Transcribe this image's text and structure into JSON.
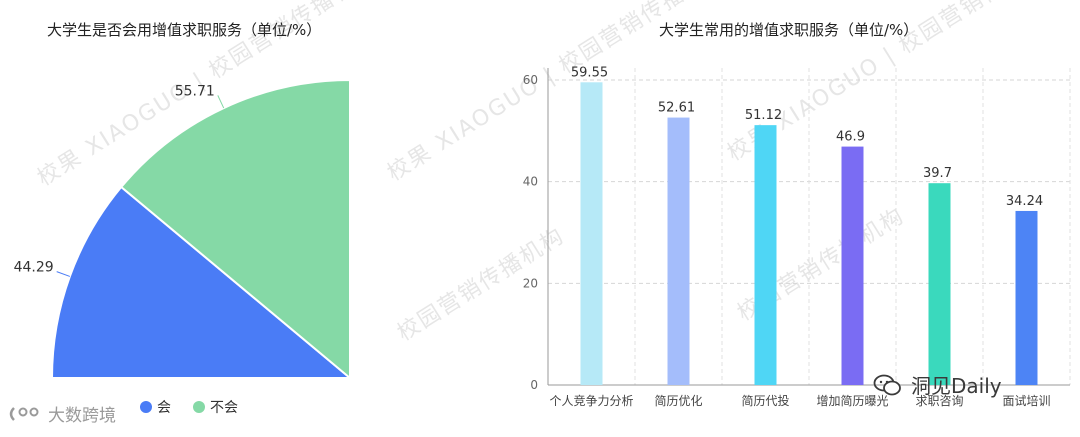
{
  "chart_data": [
    {
      "type": "pie",
      "title": "大学生是否会用增值求职服务（单位/%）",
      "slices": [
        {
          "label": "会",
          "value": 44.29,
          "color": "#4a7cf6"
        },
        {
          "label": "不会",
          "value": 55.71,
          "color": "#85d9a6"
        }
      ],
      "legend_position": "bottom"
    },
    {
      "type": "bar",
      "title": "大学生常用的增值求职服务（单位/%）",
      "categories": [
        "个人竞争力分析",
        "简历优化",
        "简历代投",
        "增加简历曝光",
        "求职咨询",
        "面试培训"
      ],
      "values": [
        59.55,
        52.61,
        51.12,
        46.9,
        39.7,
        34.24
      ],
      "value_labels": [
        "59.55",
        "52.61",
        "51.12",
        "46.9",
        "39.7",
        "34.24"
      ],
      "colors": [
        "#b6e9f7",
        "#a4bdfb",
        "#4fd6f5",
        "#7a6cf3",
        "#3ad9bd",
        "#4d84f5"
      ],
      "ylim": [
        0,
        60
      ],
      "yticks": [
        0,
        20,
        40,
        60
      ],
      "grid": true
    }
  ],
  "watermarks": [
    "校果 XIAOGUO | 校园营销传播机构",
    "校园营销传播机构"
  ],
  "brand_left": "大数跨境",
  "brand_right": "洞见Daily",
  "colors": {
    "pie_a": "#4a7cf6",
    "pie_b": "#85d9a6",
    "grid": "#d6d6d6",
    "axis": "#999999"
  }
}
